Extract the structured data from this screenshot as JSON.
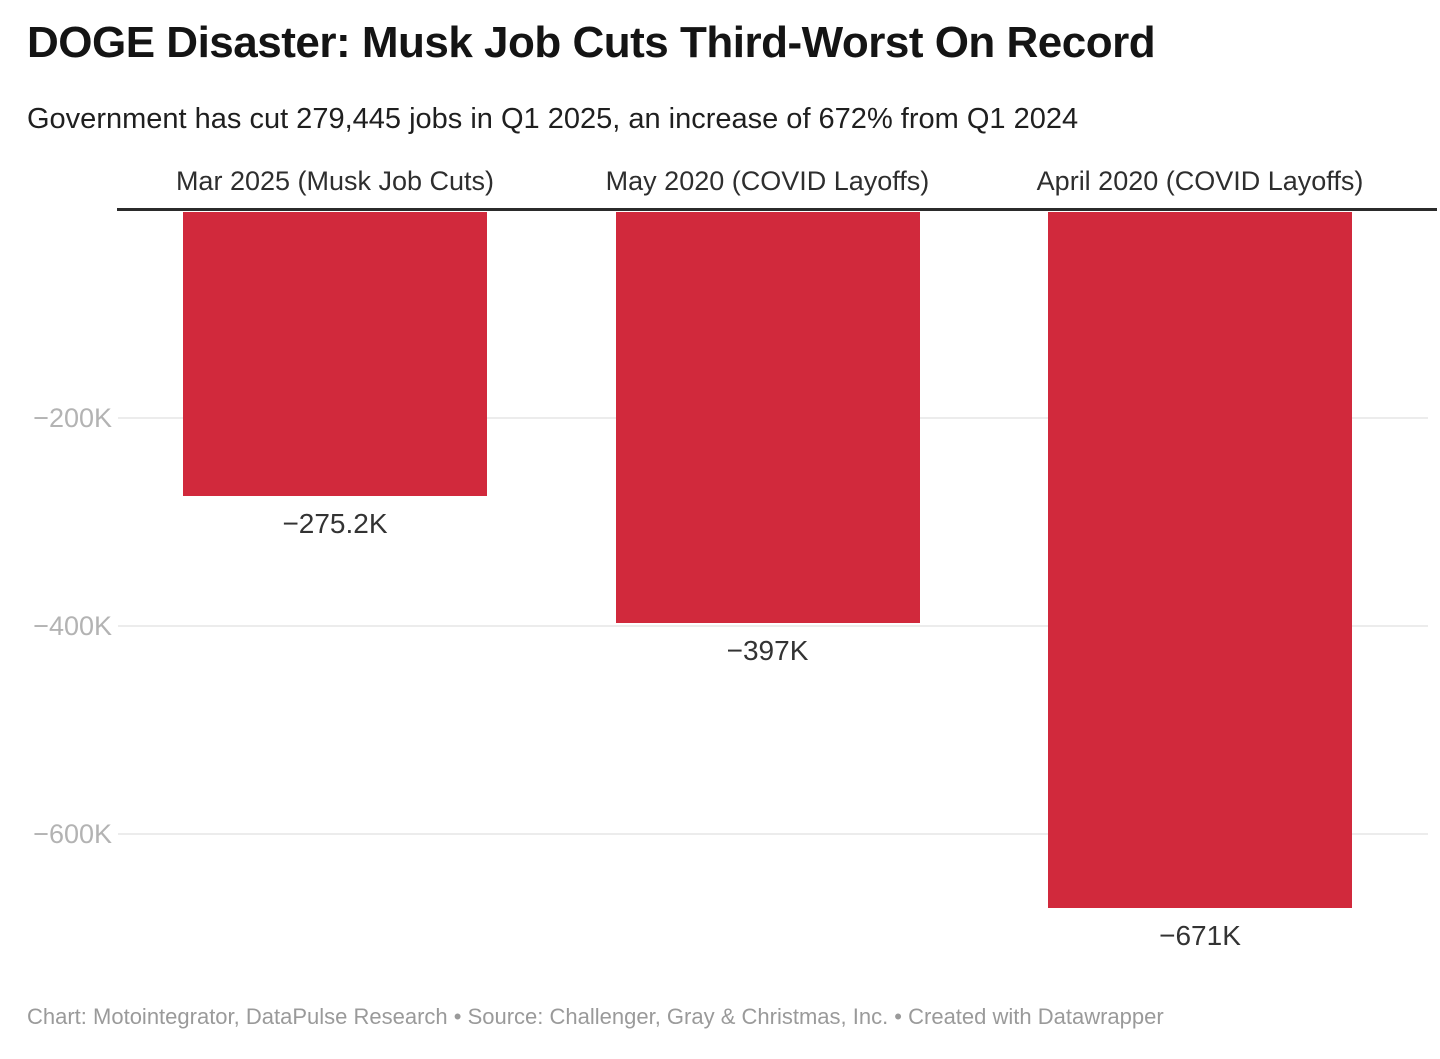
{
  "header": {
    "title": "DOGE Disaster: Musk Job Cuts Third-Worst On Record",
    "subtitle": "Government has cut 279,445 jobs in Q1 2025, an increase of 672% from Q1 2024"
  },
  "chart_data": {
    "type": "bar",
    "orientation": "vertical-negative",
    "categories": [
      "Mar 2025 (Musk Job Cuts)",
      "May 2020 (COVID Layoffs)",
      "April 2020 (COVID Layoffs)"
    ],
    "values": [
      -275200,
      -397000,
      -671000
    ],
    "value_labels": [
      "−275.2K",
      "−397K",
      "−671K"
    ],
    "y_axis": {
      "ticks": [
        -200000,
        -400000,
        -600000
      ],
      "tick_labels": [
        "−200K",
        "−400K",
        "−600K"
      ],
      "range": [
        -700000,
        0
      ]
    },
    "grid": true,
    "legend": "none",
    "baseline_value": 0,
    "bar_color": "#d1293c"
  },
  "footer": {
    "text": "Chart: Motointegrator, DataPulse Research • Source: Challenger, Gray & Christmas, Inc. • Created with Datawrapper"
  },
  "colors": {
    "bar": "#d1293c",
    "title": "#141414",
    "subtitle": "#1f1f1f",
    "category_label": "#2e2e2e",
    "value_label": "#333333",
    "tick_label": "#b3b3b3",
    "gridline": "#ececec",
    "baseline": "#2b2b2b",
    "footer": "#9a9a9a",
    "background": "#ffffff"
  }
}
